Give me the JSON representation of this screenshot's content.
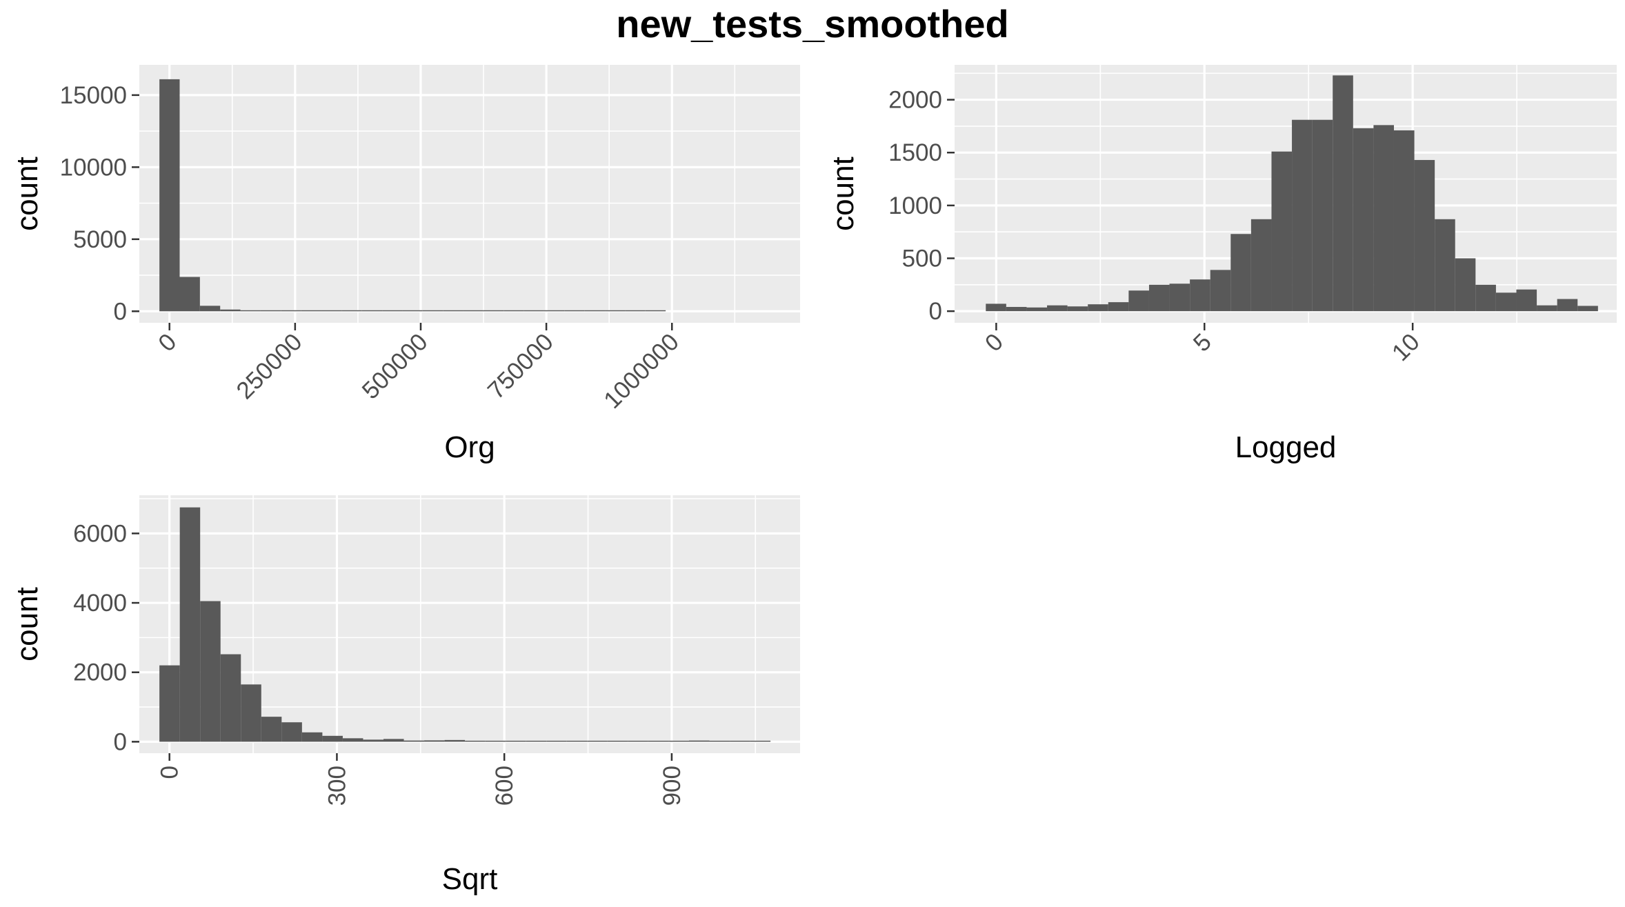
{
  "title": "new_tests_smoothed",
  "chart_data": [
    {
      "type": "bar",
      "subtype": "histogram",
      "xlabel": "Org",
      "ylabel": "count",
      "xlim": [
        -60000,
        1255000
      ],
      "ylim": [
        -800,
        17100
      ],
      "x_ticks": [
        0,
        250000,
        500000,
        750000,
        1000000
      ],
      "x_tick_labels": [
        "0",
        "250000",
        "500000",
        "750000",
        "1000000"
      ],
      "x_tick_rotation": 45,
      "y_ticks": [
        0,
        5000,
        10000,
        15000
      ],
      "y_tick_labels": [
        "0",
        "5000",
        "10000",
        "15000"
      ],
      "grid": true,
      "bin_start": -20000,
      "bin_width": 40300,
      "values": [
        16100,
        2380,
        380,
        120,
        70,
        40,
        55,
        25,
        15,
        10,
        8,
        6,
        5,
        4,
        4,
        3,
        3,
        20,
        3,
        2,
        2,
        2,
        1,
        1,
        1,
        0,
        0,
        0,
        0,
        0
      ]
    },
    {
      "type": "bar",
      "subtype": "histogram",
      "xlabel": "Logged",
      "ylabel": "count",
      "xlim": [
        -1.0,
        14.9
      ],
      "ylim": [
        -110,
        2330
      ],
      "x_ticks": [
        0,
        5,
        10
      ],
      "x_tick_labels": [
        "0",
        "5",
        "10"
      ],
      "x_tick_rotation": 45,
      "y_ticks": [
        0,
        500,
        1000,
        1500,
        2000
      ],
      "y_tick_labels": [
        "0",
        "500",
        "1000",
        "1500",
        "2000"
      ],
      "grid": true,
      "bin_start": -0.25,
      "bin_width": 0.49,
      "values": [
        70,
        40,
        35,
        55,
        45,
        65,
        85,
        195,
        250,
        260,
        300,
        390,
        730,
        870,
        1510,
        1810,
        1810,
        2230,
        1730,
        1760,
        1710,
        1430,
        870,
        500,
        250,
        175,
        205,
        55,
        115,
        50
      ]
    },
    {
      "type": "bar",
      "subtype": "histogram",
      "xlabel": "Sqrt",
      "ylabel": "count",
      "xlim": [
        -54,
        1130
      ],
      "ylim": [
        -330,
        7100
      ],
      "x_ticks": [
        0,
        300,
        600,
        900
      ],
      "x_tick_labels": [
        "0",
        "300",
        "600",
        "900"
      ],
      "x_tick_rotation": 90,
      "y_ticks": [
        0,
        2000,
        4000,
        6000
      ],
      "y_tick_labels": [
        "0",
        "2000",
        "4000",
        "6000"
      ],
      "grid": true,
      "bin_start": -18,
      "bin_width": 36.5,
      "values": [
        2200,
        6750,
        4050,
        2520,
        1650,
        720,
        560,
        270,
        170,
        100,
        60,
        80,
        35,
        40,
        50,
        30,
        20,
        10,
        5,
        5,
        5,
        3,
        3,
        2,
        2,
        5,
        35,
        25,
        5,
        15
      ]
    }
  ]
}
